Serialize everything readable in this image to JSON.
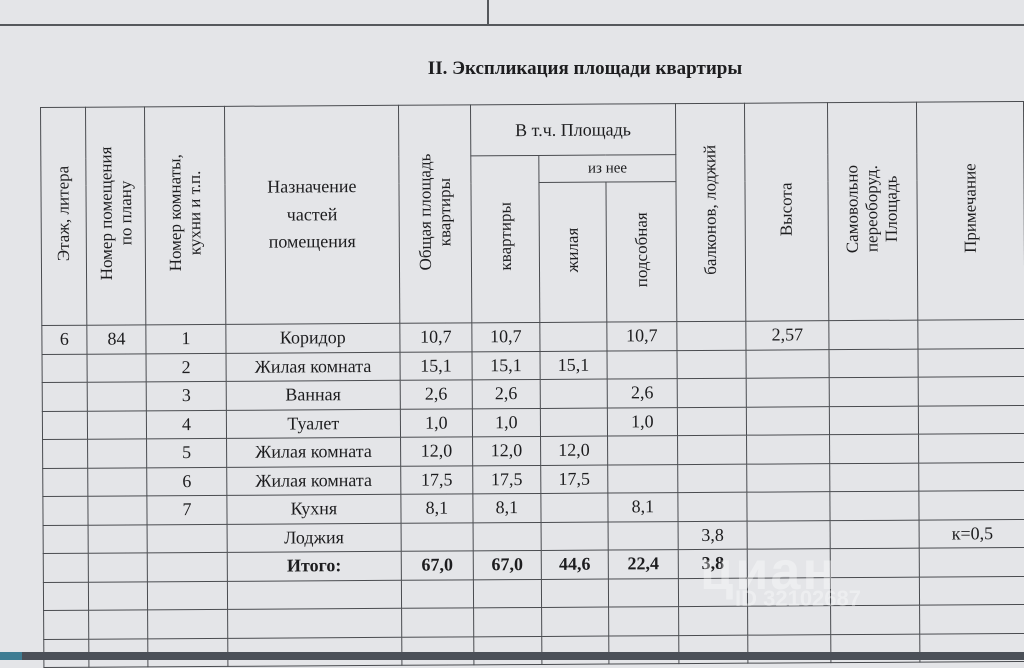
{
  "document": {
    "title": "II. Экспликация площади квартиры",
    "headers": {
      "floor": "Этаж, литера",
      "room_no_plan": "Номер помещения\nпо плану",
      "room_no": "Номер комнаты,\nкухни и т.п.",
      "purpose": "Назначение\nчастей\nпомещения",
      "total_area": "Общая площадь\nквартиры",
      "incl_area": "В т.ч. Площадь",
      "apartment": "квартиры",
      "of_which": "из нее",
      "living": "жилая",
      "auxiliary": "подсобная",
      "balconies": "балконов, лоджий",
      "height": "Высота",
      "self_rebuilt": "Самовольно\nпереоборуд.\nПлощадь",
      "note": "Примечание"
    },
    "rows": [
      {
        "floor": "6",
        "plan_no": "84",
        "room": "1",
        "name": "Коридор",
        "total": "10,7",
        "apt": "10,7",
        "living": "",
        "aux": "10,7",
        "balcony": "",
        "height": "2,57",
        "self": "",
        "note": ""
      },
      {
        "floor": "",
        "plan_no": "",
        "room": "2",
        "name": "Жилая комната",
        "total": "15,1",
        "apt": "15,1",
        "living": "15,1",
        "aux": "",
        "balcony": "",
        "height": "",
        "self": "",
        "note": ""
      },
      {
        "floor": "",
        "plan_no": "",
        "room": "3",
        "name": "Ванная",
        "total": "2,6",
        "apt": "2,6",
        "living": "",
        "aux": "2,6",
        "balcony": "",
        "height": "",
        "self": "",
        "note": ""
      },
      {
        "floor": "",
        "plan_no": "",
        "room": "4",
        "name": "Туалет",
        "total": "1,0",
        "apt": "1,0",
        "living": "",
        "aux": "1,0",
        "balcony": "",
        "height": "",
        "self": "",
        "note": ""
      },
      {
        "floor": "",
        "plan_no": "",
        "room": "5",
        "name": "Жилая комната",
        "total": "12,0",
        "apt": "12,0",
        "living": "12,0",
        "aux": "",
        "balcony": "",
        "height": "",
        "self": "",
        "note": ""
      },
      {
        "floor": "",
        "plan_no": "",
        "room": "6",
        "name": "Жилая комната",
        "total": "17,5",
        "apt": "17,5",
        "living": "17,5",
        "aux": "",
        "balcony": "",
        "height": "",
        "self": "",
        "note": ""
      },
      {
        "floor": "",
        "plan_no": "",
        "room": "7",
        "name": "Кухня",
        "total": "8,1",
        "apt": "8,1",
        "living": "",
        "aux": "8,1",
        "balcony": "",
        "height": "",
        "self": "",
        "note": ""
      },
      {
        "floor": "",
        "plan_no": "",
        "room": "",
        "name": "Лоджия",
        "total": "",
        "apt": "",
        "living": "",
        "aux": "",
        "balcony": "3,8",
        "height": "",
        "self": "",
        "note": "к=0,5"
      }
    ],
    "totals": {
      "label": "Итого:",
      "total": "67,0",
      "apt": "67,0",
      "living": "44,6",
      "aux": "22,4",
      "balcony": "3,8"
    },
    "empty_rows": 3
  },
  "watermark": {
    "brand": "циан",
    "id": "ID 32102687"
  }
}
